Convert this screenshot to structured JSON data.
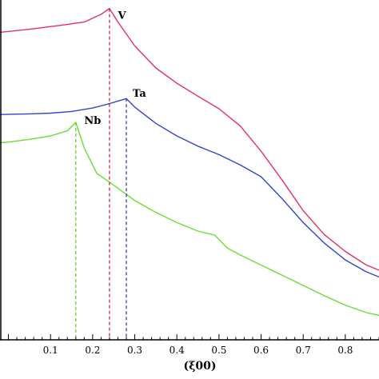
{
  "chart_data": {
    "type": "line",
    "title": "",
    "xlabel": "(ξ00)",
    "ylabel": "",
    "xlim": [
      -0.02,
      0.88
    ],
    "ylim": [
      0,
      1
    ],
    "xticks": [
      "0.1",
      "0.2",
      "0.3",
      "0.4",
      "0.5",
      "0.6",
      "0.7",
      "0.8"
    ],
    "xtick_values": [
      0.1,
      0.2,
      0.3,
      0.4,
      0.5,
      0.6,
      0.7,
      0.8
    ],
    "grid": false,
    "series": [
      {
        "name": "V",
        "color": "#e0306a",
        "x": [
          -0.02,
          0.05,
          0.12,
          0.18,
          0.22,
          0.24,
          0.26,
          0.3,
          0.35,
          0.4,
          0.45,
          0.5,
          0.55,
          0.6,
          0.65,
          0.7,
          0.75,
          0.8,
          0.85,
          0.88
        ],
        "y": [
          0.905,
          0.914,
          0.925,
          0.935,
          0.958,
          0.975,
          0.935,
          0.865,
          0.8,
          0.755,
          0.717,
          0.68,
          0.63,
          0.555,
          0.47,
          0.38,
          0.31,
          0.26,
          0.22,
          0.205
        ]
      },
      {
        "name": "Ta",
        "color": "#3344cc",
        "x": [
          -0.02,
          0.05,
          0.1,
          0.15,
          0.2,
          0.24,
          0.28,
          0.3,
          0.35,
          0.4,
          0.45,
          0.5,
          0.55,
          0.6,
          0.65,
          0.7,
          0.75,
          0.8,
          0.85,
          0.88
        ],
        "y": [
          0.663,
          0.665,
          0.667,
          0.672,
          0.682,
          0.695,
          0.71,
          0.685,
          0.637,
          0.6,
          0.57,
          0.545,
          0.515,
          0.48,
          0.415,
          0.345,
          0.285,
          0.235,
          0.2,
          0.185
        ]
      },
      {
        "name": "Nb",
        "color": "#66e033",
        "x": [
          -0.02,
          0.0,
          0.05,
          0.1,
          0.14,
          0.16,
          0.18,
          0.21,
          0.25,
          0.3,
          0.35,
          0.4,
          0.45,
          0.49,
          0.52,
          0.55,
          0.6,
          0.65,
          0.7,
          0.75,
          0.8,
          0.85,
          0.88
        ],
        "y": [
          0.58,
          0.582,
          0.59,
          0.6,
          0.615,
          0.64,
          0.565,
          0.49,
          0.455,
          0.41,
          0.375,
          0.345,
          0.32,
          0.308,
          0.27,
          0.25,
          0.22,
          0.19,
          0.16,
          0.13,
          0.102,
          0.08,
          0.072
        ]
      }
    ],
    "annotations": [
      {
        "text": "V",
        "x": 0.26,
        "y": 0.945,
        "color": "#000000"
      },
      {
        "text": "Ta",
        "x": 0.295,
        "y": 0.715,
        "color": "#000000"
      },
      {
        "text": "Nb",
        "x": 0.18,
        "y": 0.635,
        "color": "#000000"
      }
    ],
    "drop_lines": [
      {
        "series": "V",
        "x": 0.24,
        "color": "#cc1133"
      },
      {
        "series": "Ta",
        "x": 0.28,
        "color": "#2233aa"
      },
      {
        "series": "Nb",
        "x": 0.16,
        "color": "#55cc22"
      }
    ]
  }
}
